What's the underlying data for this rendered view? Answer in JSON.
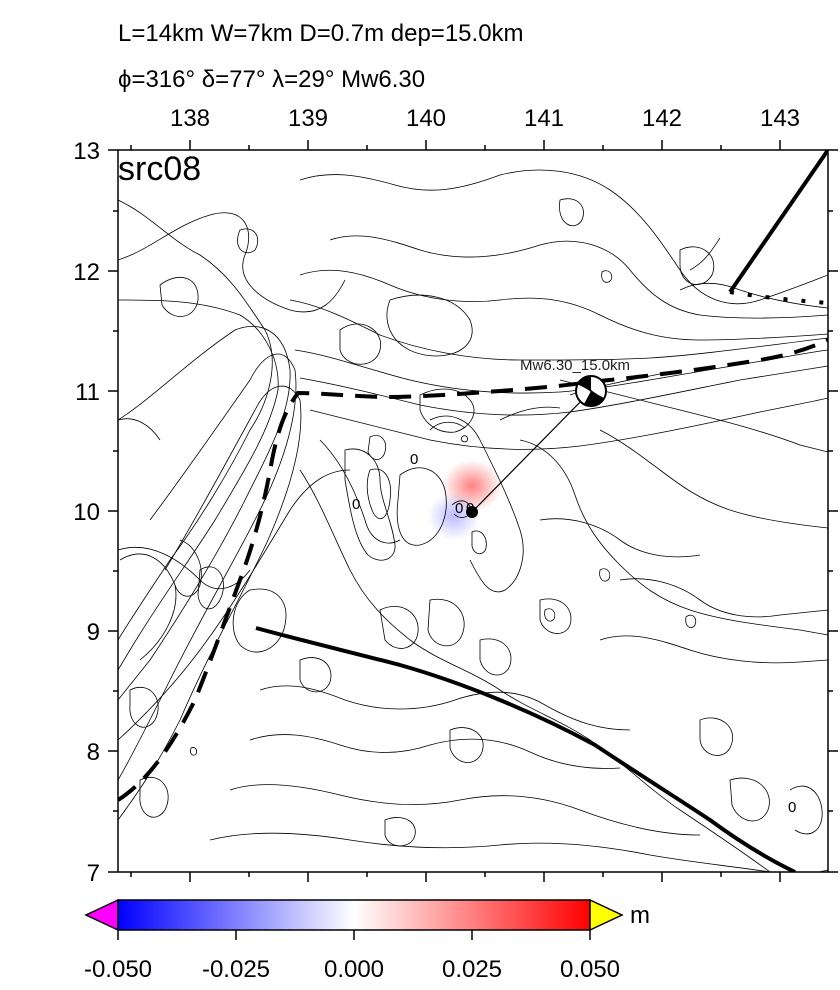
{
  "header": {
    "line1": "L=14km W=7km D=0.7m dep=15.0km",
    "line2": "ϕ=316° δ=77° λ=29° Mw6.30"
  },
  "panel_label": "src08",
  "map": {
    "lon_ticks": [
      "138",
      "139",
      "140",
      "141",
      "142",
      "143"
    ],
    "lat_ticks": [
      "13",
      "12",
      "11",
      "10",
      "9",
      "8",
      "7"
    ],
    "lon_range": [
      137.5,
      143.4
    ],
    "lat_range": [
      7,
      13
    ],
    "event": {
      "label": "Mw6.30_15.0km",
      "lon": 141.42,
      "lat": 11.0
    },
    "source_point": {
      "lon": 140.42,
      "lat": 10.01
    },
    "contour_labels": [
      "0",
      "0",
      "0",
      "0",
      "0"
    ]
  },
  "colorbar": {
    "ticks": [
      "-0.050",
      "-0.025",
      "0.000",
      "0.025",
      "0.050"
    ],
    "unit": "m",
    "min": -0.05,
    "max": 0.05,
    "colors": {
      "low": "#0000ff",
      "mid": "#ffffff",
      "high": "#ff0000",
      "under": "#ff00ff",
      "over": "#ffff00"
    }
  }
}
